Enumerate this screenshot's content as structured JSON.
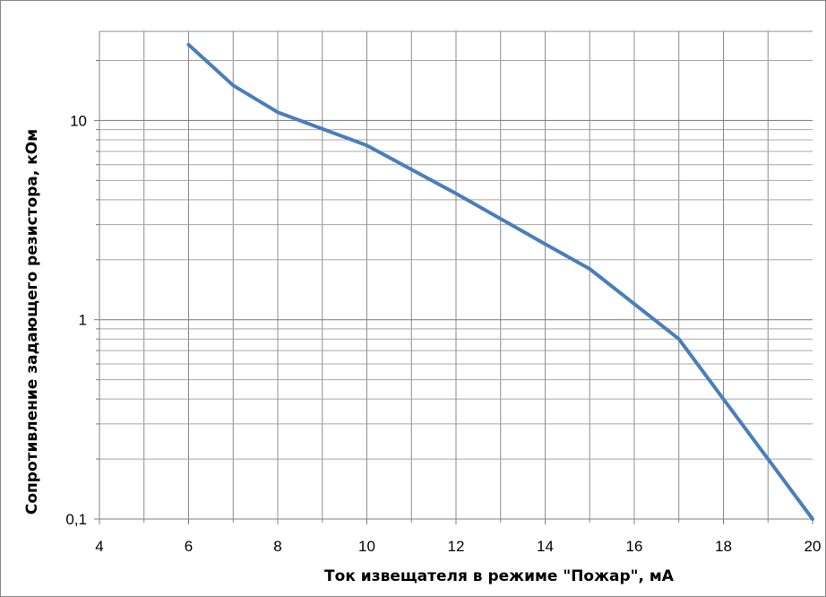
{
  "chart_data": {
    "type": "line",
    "title": "",
    "xlabel": "Ток извещателя в режиме \"Пожар\", мА",
    "ylabel": "Сопротивление  задающего  резистора,  кОм",
    "x_ticks": [
      "4",
      "6",
      "8",
      "10",
      "12",
      "14",
      "16",
      "18",
      "20"
    ],
    "y_ticks": [
      {
        "value": 0.1,
        "label": "0,1"
      },
      {
        "value": 1,
        "label": "1"
      },
      {
        "value": 10,
        "label": "10"
      }
    ],
    "xlim": [
      4,
      20
    ],
    "ylim": [
      0.1,
      28
    ],
    "y_scale": "log",
    "grid": true,
    "legend": "none",
    "line_color": "#4a7ebb",
    "grid_color": "#8c8c8c",
    "series": [
      {
        "x": [
          6,
          7,
          8,
          10,
          12,
          14,
          15,
          16,
          17,
          18,
          19,
          20
        ],
        "values": [
          24,
          15,
          11,
          7.5,
          4.3,
          2.4,
          1.8,
          1.2,
          0.8,
          0.4,
          0.2,
          0.1
        ]
      }
    ]
  }
}
